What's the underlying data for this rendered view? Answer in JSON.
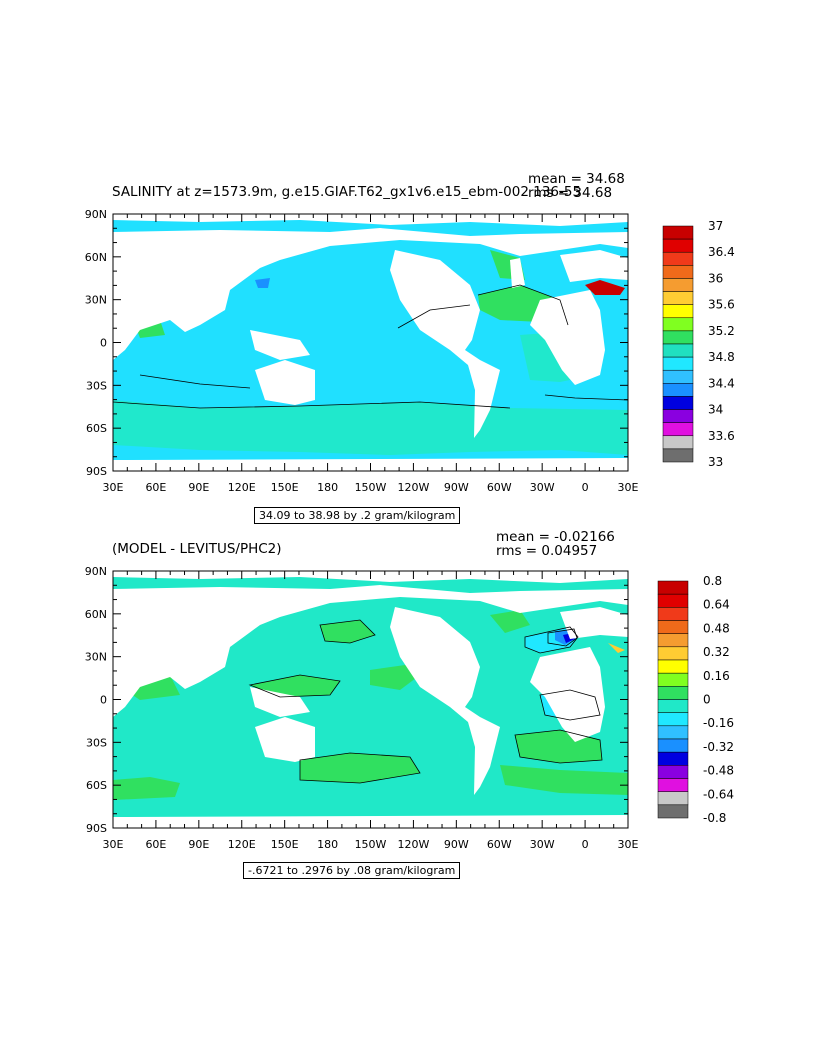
{
  "panels": [
    {
      "title": "SALINITY at z=1573.9m, g.e15.GIAF.T62_gx1v6.e15_ebm-002 136-55",
      "mean_text": "mean = 34.68",
      "rms_text": "rms = 34.68",
      "caption": "34.09 to 38.98 by .2 gram/kilogram",
      "x_ticks": [
        "30E",
        "60E",
        "90E",
        "120E",
        "150E",
        "180",
        "150W",
        "120W",
        "90W",
        "60W",
        "30W",
        "0",
        "30E"
      ],
      "y_ticks": [
        "90N",
        "60N",
        "30N",
        "0",
        "30S",
        "60S",
        "90S"
      ],
      "legend": {
        "labels": [
          "37",
          "36.4",
          "36",
          "35.6",
          "35.2",
          "34.8",
          "34.4",
          "34",
          "33.6",
          "33"
        ],
        "colors": [
          "#c80000",
          "#e00000",
          "#f03a1a",
          "#f06a1a",
          "#f59c30",
          "#ffcc33",
          "#ffff00",
          "#80ff20",
          "#30e060",
          "#20e0c0",
          "#20e8ff",
          "#30c0ff",
          "#1a90ff",
          "#0000e0",
          "#8a00e0",
          "#e010e0",
          "#c8c8c8",
          "#6e6e6e"
        ]
      }
    },
    {
      "title": "(MODEL - LEVITUS/PHC2)",
      "mean_text": "mean = -0.02166",
      "rms_text": "rms = 0.04957",
      "caption": "-.6721 to .2976 by .08 gram/kilogram",
      "x_ticks": [
        "30E",
        "60E",
        "90E",
        "120E",
        "150E",
        "180",
        "150W",
        "120W",
        "90W",
        "60W",
        "30W",
        "0",
        "30E"
      ],
      "y_ticks": [
        "90N",
        "60N",
        "30N",
        "0",
        "30S",
        "60S",
        "90S"
      ],
      "legend": {
        "labels": [
          "0.8",
          "0.64",
          "0.48",
          "0.32",
          "0.16",
          "0",
          "-0.16",
          "-0.32",
          "-0.48",
          "-0.64",
          "-0.8"
        ],
        "colors": [
          "#c80000",
          "#e00000",
          "#f03a1a",
          "#f06a1a",
          "#f59c30",
          "#ffcc33",
          "#ffff00",
          "#80ff20",
          "#30e060",
          "#20e8c8",
          "#20e8ff",
          "#30c0ff",
          "#1a90ff",
          "#0000e0",
          "#8a00e0",
          "#e010e0",
          "#c8c8c8",
          "#6e6e6e"
        ]
      }
    }
  ],
  "map_colors": {
    "ocean_salinity_main": "#20e0ff",
    "ocean_salinity_south": "#20e8cc",
    "ocean_salinity_atlantic": "#30e060",
    "ocean_diff_main": "#20e8c8",
    "ocean_diff_positive": "#30e060",
    "land": "#ffffff"
  }
}
